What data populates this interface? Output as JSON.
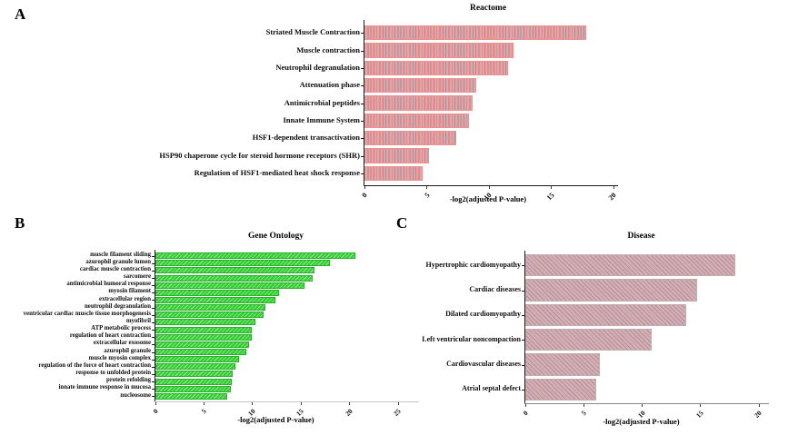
{
  "panels": [
    {
      "letter": "A"
    },
    {
      "letter": "B"
    },
    {
      "letter": "C"
    }
  ],
  "chart_data": [
    {
      "type": "bar",
      "orientation": "horizontal",
      "title": "Reactome",
      "xlabel": "-log2(adjusted P-value)",
      "categories": [
        "Striated Muscle Contraction",
        "Muscle contraction",
        "Neutrophil degranulation",
        "Attenuation phase",
        "Antimicrobial peptides",
        "Innate Immune System",
        "HSF1-dependent transactivation",
        "HSP90 chaperone cycle for steroid hormone receptors (SHR)",
        "Regulation of HSF1-mediated heat shock response"
      ],
      "values": [
        17.8,
        12.0,
        11.5,
        9.0,
        8.7,
        8.4,
        7.4,
        5.2,
        4.7
      ],
      "xlim": [
        0,
        20
      ],
      "xticks": [
        0,
        5,
        10,
        15,
        20
      ],
      "bar_color": "#f79c9c",
      "hatch": "vertical",
      "hatch_color": "#8f96a4",
      "grid": false,
      "legend": "none"
    },
    {
      "type": "bar",
      "orientation": "horizontal",
      "title": "Gene Ontology",
      "xlabel": "-log2(adjusted P-value)",
      "categories": [
        "muscle filament sliding",
        "azurophil granule lumen",
        "cardiac muscle contraction",
        "sarcomere",
        "antimicrobial humoral response",
        "myosin filament",
        "extracellular region",
        "neutrophil degranulation",
        "ventricular cardiac muscle tissue morphogenesis",
        "myofibril",
        "ATP metabolic process",
        "regulation of heart contraction",
        "extracellular exosome",
        "azurophil granule",
        "muscle myosin complex",
        "regulation of the force of heart contraction",
        "response to unfolded protein",
        "protein refolding",
        "innate immune response in mucosa",
        "nucleosome"
      ],
      "values": [
        20.6,
        18.0,
        16.4,
        16.2,
        15.4,
        12.7,
        12.4,
        11.3,
        11.1,
        10.3,
        9.9,
        9.9,
        9.6,
        9.4,
        8.6,
        8.2,
        8.0,
        7.9,
        7.8,
        7.4
      ],
      "xlim": [
        0,
        25
      ],
      "xticks": [
        0,
        5,
        10,
        15,
        20,
        25
      ],
      "bar_color": "#32ce32",
      "hatch": "diagonal-up",
      "hatch_color": "rgba(255,255,255,0.5)",
      "grid": false,
      "legend": "none"
    },
    {
      "type": "bar",
      "orientation": "horizontal",
      "title": "Disease",
      "xlabel": "-log2(adjusted P-value)",
      "categories": [
        "Hypertrophic cardiomyopathy",
        "Cardiac diseases",
        "Dilated cardiomyopathy",
        "Left ventricular noncompaction",
        "Cardiovascular diseases",
        "Atrial septal defect"
      ],
      "values": [
        18.0,
        14.7,
        13.8,
        10.8,
        6.4,
        6.1
      ],
      "xlim": [
        0,
        20
      ],
      "xticks": [
        0,
        5,
        10,
        15,
        20
      ],
      "bar_color": "#d8aeb1",
      "hatch": "diagonal-down",
      "hatch_color": "rgba(110,115,150,0.45)",
      "grid": false,
      "legend": "none"
    }
  ]
}
